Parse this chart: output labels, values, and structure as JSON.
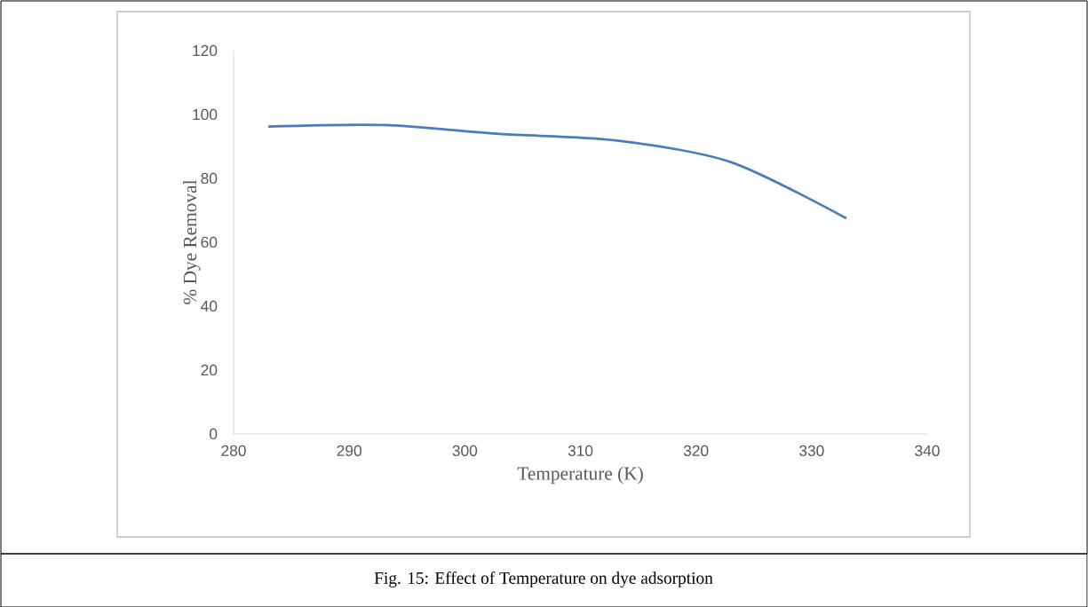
{
  "chart_data": {
    "type": "line",
    "title": "Fig. 15: Effect of Temperature on dye adsorption",
    "xlabel": "Temperature (K)",
    "ylabel": "% Dye Removal",
    "x": [
      283,
      293,
      303,
      313,
      323,
      333
    ],
    "values": [
      96.2,
      96.7,
      93.9,
      91.9,
      85.1,
      67.5
    ],
    "color": "#4a7ebb",
    "marker": "none",
    "line_style": "solid",
    "grid": false,
    "xlim": [
      280,
      340
    ],
    "xticks": [
      280,
      290,
      300,
      310,
      320,
      330,
      340
    ],
    "ylim": [
      0,
      120
    ],
    "yticks": [
      0,
      20,
      40,
      60,
      80,
      100,
      120
    ]
  }
}
